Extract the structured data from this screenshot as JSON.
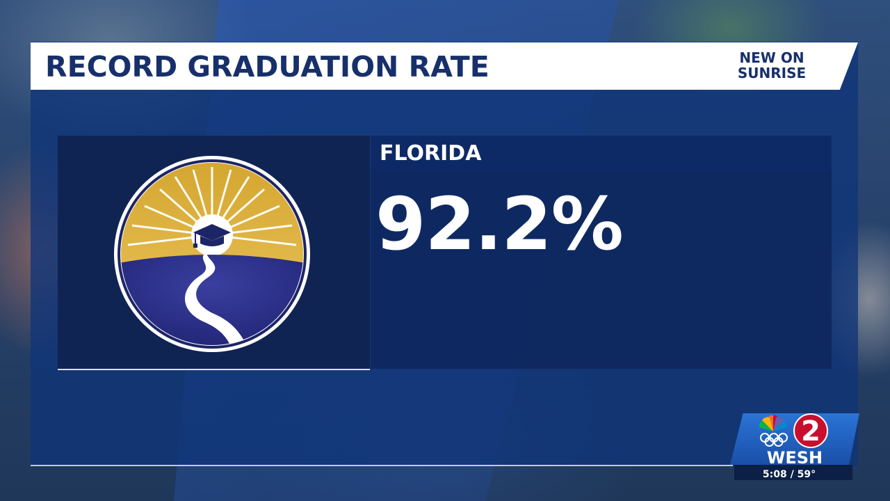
{
  "header": {
    "title": "RECORD GRADUATION RATE",
    "tag_line1": "NEW ON",
    "tag_line2": "SUNRISE"
  },
  "stat": {
    "label": "FLORIDA",
    "value": "92.2%"
  },
  "logo": {
    "icon": "education-sunrise-graduation-cap-logo"
  },
  "station": {
    "channel_number": "2",
    "call_letters": "WESH",
    "time_weather": "5:08 / 59°",
    "network_icon": "peacock-icon",
    "rings_icon": "olympic-rings-icon"
  },
  "colors": {
    "header_text": "#17306b",
    "panel": "#10347a",
    "logo_gold": "#d9a935",
    "logo_navy": "#1f2a7a"
  }
}
